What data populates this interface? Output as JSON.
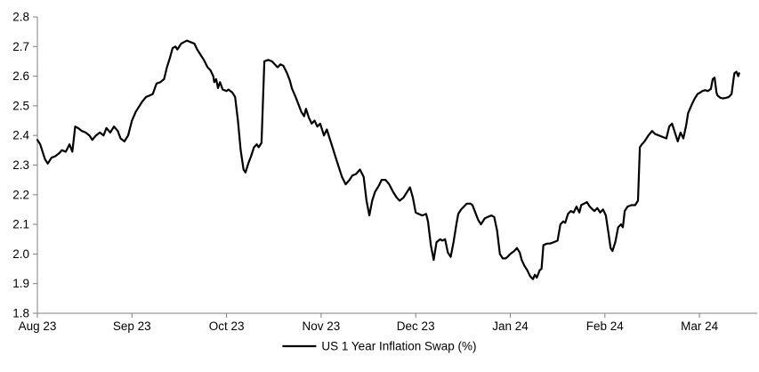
{
  "colors": {
    "series_line": "#000000",
    "axis": "#808080",
    "text": "#000000",
    "background": "#ffffff"
  },
  "legend": {
    "label": "US 1 Year Inflation Swap (%)"
  },
  "chart_data": {
    "type": "line",
    "title": "",
    "xlabel": "",
    "ylabel": "",
    "grid": false,
    "legend_position": "bottom-center",
    "x_unit": "months since Aug 2023 tick (0 = Aug 23, 1 = Sep 23, ...)",
    "xlim": [
      0,
      7.6
    ],
    "ylim": [
      1.8,
      2.8
    ],
    "y_ticks": [
      2.8,
      2.7,
      2.6,
      2.5,
      2.4,
      2.3,
      2.2,
      2.1,
      2.0,
      1.9,
      1.8
    ],
    "x_ticks": [
      "Aug 23",
      "Sep 23",
      "Oct 23",
      "Nov 23",
      "Dec 23",
      "Jan 24",
      "Feb 24",
      "Mar 24"
    ],
    "series": [
      {
        "name": "US 1 Year Inflation Swap (%)",
        "color": "#000000",
        "points": [
          [
            0.0,
            2.385
          ],
          [
            0.03,
            2.37
          ],
          [
            0.06,
            2.34
          ],
          [
            0.08,
            2.32
          ],
          [
            0.11,
            2.305
          ],
          [
            0.15,
            2.325
          ],
          [
            0.19,
            2.33
          ],
          [
            0.23,
            2.34
          ],
          [
            0.26,
            2.35
          ],
          [
            0.3,
            2.345
          ],
          [
            0.34,
            2.37
          ],
          [
            0.37,
            2.345
          ],
          [
            0.4,
            2.43
          ],
          [
            0.43,
            2.425
          ],
          [
            0.47,
            2.415
          ],
          [
            0.51,
            2.41
          ],
          [
            0.55,
            2.4
          ],
          [
            0.58,
            2.385
          ],
          [
            0.62,
            2.4
          ],
          [
            0.66,
            2.41
          ],
          [
            0.7,
            2.4
          ],
          [
            0.73,
            2.425
          ],
          [
            0.77,
            2.41
          ],
          [
            0.81,
            2.43
          ],
          [
            0.85,
            2.415
          ],
          [
            0.88,
            2.39
          ],
          [
            0.92,
            2.38
          ],
          [
            0.96,
            2.4
          ],
          [
            1.0,
            2.45
          ],
          [
            1.04,
            2.48
          ],
          [
            1.08,
            2.5
          ],
          [
            1.11,
            2.515
          ],
          [
            1.15,
            2.53
          ],
          [
            1.19,
            2.535
          ],
          [
            1.22,
            2.54
          ],
          [
            1.26,
            2.575
          ],
          [
            1.3,
            2.58
          ],
          [
            1.34,
            2.59
          ],
          [
            1.37,
            2.63
          ],
          [
            1.4,
            2.66
          ],
          [
            1.43,
            2.695
          ],
          [
            1.46,
            2.7
          ],
          [
            1.48,
            2.69
          ],
          [
            1.52,
            2.71
          ],
          [
            1.55,
            2.715
          ],
          [
            1.58,
            2.72
          ],
          [
            1.62,
            2.715
          ],
          [
            1.66,
            2.71
          ],
          [
            1.69,
            2.69
          ],
          [
            1.72,
            2.675
          ],
          [
            1.76,
            2.655
          ],
          [
            1.8,
            2.63
          ],
          [
            1.83,
            2.62
          ],
          [
            1.86,
            2.6
          ],
          [
            1.87,
            2.58
          ],
          [
            1.89,
            2.59
          ],
          [
            1.91,
            2.56
          ],
          [
            1.93,
            2.58
          ],
          [
            1.96,
            2.555
          ],
          [
            2.0,
            2.55
          ],
          [
            2.02,
            2.555
          ],
          [
            2.06,
            2.545
          ],
          [
            2.09,
            2.53
          ],
          [
            2.12,
            2.45
          ],
          [
            2.15,
            2.35
          ],
          [
            2.18,
            2.285
          ],
          [
            2.2,
            2.275
          ],
          [
            2.23,
            2.305
          ],
          [
            2.26,
            2.33
          ],
          [
            2.29,
            2.36
          ],
          [
            2.32,
            2.37
          ],
          [
            2.34,
            2.36
          ],
          [
            2.37,
            2.375
          ],
          [
            2.4,
            2.65
          ],
          [
            2.44,
            2.655
          ],
          [
            2.48,
            2.65
          ],
          [
            2.51,
            2.64
          ],
          [
            2.54,
            2.63
          ],
          [
            2.57,
            2.64
          ],
          [
            2.6,
            2.635
          ],
          [
            2.64,
            2.61
          ],
          [
            2.67,
            2.585
          ],
          [
            2.69,
            2.56
          ],
          [
            2.73,
            2.53
          ],
          [
            2.76,
            2.505
          ],
          [
            2.79,
            2.48
          ],
          [
            2.82,
            2.465
          ],
          [
            2.84,
            2.49
          ],
          [
            2.87,
            2.46
          ],
          [
            2.9,
            2.44
          ],
          [
            2.93,
            2.45
          ],
          [
            2.96,
            2.43
          ],
          [
            2.99,
            2.44
          ],
          [
            3.03,
            2.4
          ],
          [
            3.06,
            2.42
          ],
          [
            3.09,
            2.39
          ],
          [
            3.12,
            2.36
          ],
          [
            3.15,
            2.33
          ],
          [
            3.18,
            2.3
          ],
          [
            3.22,
            2.26
          ],
          [
            3.26,
            2.235
          ],
          [
            3.3,
            2.25
          ],
          [
            3.33,
            2.265
          ],
          [
            3.37,
            2.27
          ],
          [
            3.41,
            2.285
          ],
          [
            3.45,
            2.26
          ],
          [
            3.48,
            2.18
          ],
          [
            3.51,
            2.13
          ],
          [
            3.54,
            2.18
          ],
          [
            3.57,
            2.21
          ],
          [
            3.61,
            2.23
          ],
          [
            3.64,
            2.25
          ],
          [
            3.68,
            2.25
          ],
          [
            3.72,
            2.235
          ],
          [
            3.76,
            2.21
          ],
          [
            3.8,
            2.19
          ],
          [
            3.83,
            2.18
          ],
          [
            3.87,
            2.19
          ],
          [
            3.91,
            2.21
          ],
          [
            3.94,
            2.225
          ],
          [
            3.97,
            2.19
          ],
          [
            4.0,
            2.14
          ],
          [
            4.03,
            2.135
          ],
          [
            4.07,
            2.13
          ],
          [
            4.11,
            2.135
          ],
          [
            4.13,
            2.11
          ],
          [
            4.16,
            2.03
          ],
          [
            4.19,
            1.98
          ],
          [
            4.22,
            2.04
          ],
          [
            4.26,
            2.05
          ],
          [
            4.28,
            2.045
          ],
          [
            4.31,
            2.05
          ],
          [
            4.34,
            2.005
          ],
          [
            4.37,
            1.99
          ],
          [
            4.4,
            2.04
          ],
          [
            4.43,
            2.1
          ],
          [
            4.45,
            2.135
          ],
          [
            4.48,
            2.15
          ],
          [
            4.51,
            2.16
          ],
          [
            4.54,
            2.17
          ],
          [
            4.58,
            2.17
          ],
          [
            4.6,
            2.165
          ],
          [
            4.63,
            2.14
          ],
          [
            4.66,
            2.115
          ],
          [
            4.69,
            2.1
          ],
          [
            4.73,
            2.12
          ],
          [
            4.76,
            2.125
          ],
          [
            4.8,
            2.13
          ],
          [
            4.83,
            2.125
          ],
          [
            4.86,
            2.08
          ],
          [
            4.89,
            2.0
          ],
          [
            4.92,
            1.985
          ],
          [
            4.95,
            1.985
          ],
          [
            4.97,
            1.99
          ],
          [
            5.0,
            2.0
          ],
          [
            5.04,
            2.01
          ],
          [
            5.07,
            2.02
          ],
          [
            5.1,
            2.005
          ],
          [
            5.12,
            1.98
          ],
          [
            5.15,
            1.96
          ],
          [
            5.18,
            1.945
          ],
          [
            5.21,
            1.925
          ],
          [
            5.24,
            1.915
          ],
          [
            5.26,
            1.93
          ],
          [
            5.28,
            1.92
          ],
          [
            5.31,
            1.945
          ],
          [
            5.33,
            1.95
          ],
          [
            5.35,
            2.03
          ],
          [
            5.39,
            2.035
          ],
          [
            5.42,
            2.035
          ],
          [
            5.46,
            2.04
          ],
          [
            5.5,
            2.045
          ],
          [
            5.53,
            2.1
          ],
          [
            5.56,
            2.11
          ],
          [
            5.58,
            2.105
          ],
          [
            5.61,
            2.135
          ],
          [
            5.64,
            2.145
          ],
          [
            5.67,
            2.14
          ],
          [
            5.7,
            2.16
          ],
          [
            5.73,
            2.14
          ],
          [
            5.75,
            2.165
          ],
          [
            5.78,
            2.17
          ],
          [
            5.81,
            2.175
          ],
          [
            5.84,
            2.16
          ],
          [
            5.87,
            2.15
          ],
          [
            5.89,
            2.145
          ],
          [
            5.92,
            2.155
          ],
          [
            5.95,
            2.14
          ],
          [
            5.98,
            2.15
          ],
          [
            6.01,
            2.13
          ],
          [
            6.04,
            2.065
          ],
          [
            6.06,
            2.02
          ],
          [
            6.08,
            2.01
          ],
          [
            6.11,
            2.04
          ],
          [
            6.14,
            2.09
          ],
          [
            6.17,
            2.1
          ],
          [
            6.19,
            2.09
          ],
          [
            6.21,
            2.145
          ],
          [
            6.24,
            2.16
          ],
          [
            6.28,
            2.165
          ],
          [
            6.32,
            2.165
          ],
          [
            6.35,
            2.18
          ],
          [
            6.37,
            2.36
          ],
          [
            6.39,
            2.37
          ],
          [
            6.42,
            2.38
          ],
          [
            6.46,
            2.4
          ],
          [
            6.5,
            2.415
          ],
          [
            6.53,
            2.405
          ],
          [
            6.57,
            2.4
          ],
          [
            6.61,
            2.395
          ],
          [
            6.65,
            2.39
          ],
          [
            6.68,
            2.43
          ],
          [
            6.71,
            2.44
          ],
          [
            6.74,
            2.41
          ],
          [
            6.77,
            2.38
          ],
          [
            6.8,
            2.41
          ],
          [
            6.83,
            2.39
          ],
          [
            6.86,
            2.435
          ],
          [
            6.88,
            2.475
          ],
          [
            6.92,
            2.505
          ],
          [
            6.95,
            2.525
          ],
          [
            6.98,
            2.54
          ],
          [
            7.01,
            2.545
          ],
          [
            7.03,
            2.55
          ],
          [
            7.06,
            2.553
          ],
          [
            7.09,
            2.55
          ],
          [
            7.12,
            2.557
          ],
          [
            7.14,
            2.59
          ],
          [
            7.16,
            2.595
          ],
          [
            7.18,
            2.545
          ],
          [
            7.19,
            2.535
          ],
          [
            7.22,
            2.527
          ],
          [
            7.25,
            2.525
          ],
          [
            7.28,
            2.527
          ],
          [
            7.31,
            2.53
          ],
          [
            7.34,
            2.54
          ],
          [
            7.36,
            2.59
          ],
          [
            7.37,
            2.61
          ],
          [
            7.39,
            2.615
          ],
          [
            7.41,
            2.6
          ],
          [
            7.42,
            2.61
          ]
        ]
      }
    ]
  }
}
